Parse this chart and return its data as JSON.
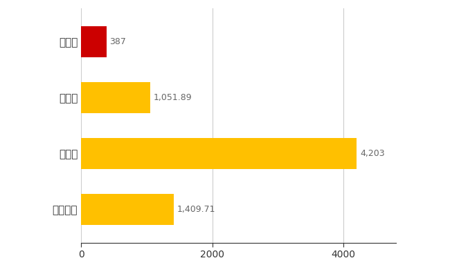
{
  "categories": [
    "大洗町",
    "県平均",
    "県最大",
    "全国平均"
  ],
  "values": [
    387,
    1051.89,
    4203,
    1409.71
  ],
  "bar_colors": [
    "#CC0000",
    "#FFC000",
    "#FFC000",
    "#FFC000"
  ],
  "labels": [
    "387",
    "1,051.89",
    "4,203",
    "1,409.71"
  ],
  "xlim": [
    0,
    4800
  ],
  "xticks": [
    0,
    2000,
    4000
  ],
  "background_color": "#FFFFFF",
  "grid_color": "#CCCCCC",
  "bar_height": 0.55,
  "label_color": "#666666",
  "label_fontsize": 9,
  "tick_fontsize": 10,
  "ytick_fontsize": 11
}
